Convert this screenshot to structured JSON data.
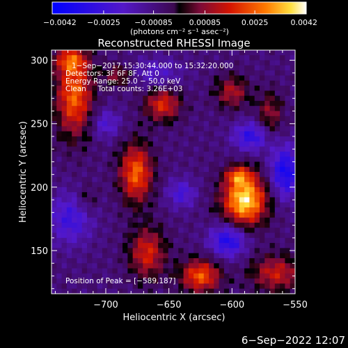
{
  "chart_data": {
    "type": "heatmap",
    "title": "Reconstructed RHESSI Image",
    "xlabel": "Heliocentric X (arcsec)",
    "ylabel": "Heliocentric Y (arcsec)",
    "xlim": [
      -743,
      -550
    ],
    "ylim": [
      116,
      308
    ],
    "xticks": [
      -700,
      -650,
      -600,
      -550
    ],
    "xtick_labels": [
      "−700",
      "−650",
      "−600",
      "−550"
    ],
    "yticks": [
      150,
      200,
      250,
      300
    ],
    "ytick_labels": [
      "150",
      "200",
      "250",
      "300"
    ],
    "colorbar": {
      "min": -0.0042,
      "max": 0.0042,
      "ticks": [
        -0.0042,
        -0.0025,
        -0.00085,
        0.00085,
        0.0025,
        0.0042
      ],
      "tick_labels": [
        "−0.0042",
        "−0.0025",
        "−0.00085",
        "0.00085",
        "0.0025",
        "0.0042"
      ],
      "unit_label": "(photons cm⁻² s⁻¹ asec⁻²)"
    },
    "annotations": [
      "1−Sep−2017 15:30:44.000 to 15:32:20.000",
      "Detectors: 3F 6F 8F, Att 0",
      "Energy Range: 25.0 − 50.0 keV",
      "Clean     Total counts: 3.26E+03"
    ],
    "peak_label": "Position of Peak = [−589,187]",
    "sources": [
      {
        "x": -590,
        "y": 190,
        "sx": 12,
        "sy": 14,
        "amp": 0.0046
      },
      {
        "x": -595,
        "y": 209,
        "sx": 7,
        "sy": 5,
        "amp": 0.0022
      },
      {
        "x": -676,
        "y": 211,
        "sx": 9,
        "sy": 16,
        "amp": 0.0032
      },
      {
        "x": -655,
        "y": 265,
        "sx": 10,
        "sy": 9,
        "amp": 0.0025
      },
      {
        "x": -725,
        "y": 272,
        "sx": 10,
        "sy": 22,
        "amp": 0.0032
      },
      {
        "x": -728,
        "y": 300,
        "sx": 9,
        "sy": 7,
        "amp": 0.0022
      },
      {
        "x": -690,
        "y": 288,
        "sx": 8,
        "sy": 6,
        "amp": 0.0016
      },
      {
        "x": -600,
        "y": 275,
        "sx": 9,
        "sy": 9,
        "amp": 0.0019
      },
      {
        "x": -570,
        "y": 258,
        "sx": 7,
        "sy": 12,
        "amp": 0.0016
      },
      {
        "x": -667,
        "y": 148,
        "sx": 10,
        "sy": 14,
        "amp": 0.0024
      },
      {
        "x": -625,
        "y": 130,
        "sx": 11,
        "sy": 9,
        "amp": 0.0031
      },
      {
        "x": -565,
        "y": 132,
        "sx": 14,
        "sy": 10,
        "amp": 0.0022
      },
      {
        "x": -715,
        "y": 190,
        "sx": 6,
        "sy": 8,
        "amp": 0.0009
      },
      {
        "x": -640,
        "y": 195,
        "sx": 8,
        "sy": 8,
        "amp": -0.0016
      },
      {
        "x": -585,
        "y": 240,
        "sx": 10,
        "sy": 8,
        "amp": -0.0022
      },
      {
        "x": -558,
        "y": 212,
        "sx": 8,
        "sy": 14,
        "amp": -0.0028
      },
      {
        "x": -603,
        "y": 158,
        "sx": 10,
        "sy": 9,
        "amp": -0.0026
      },
      {
        "x": -728,
        "y": 175,
        "sx": 12,
        "sy": 14,
        "amp": -0.0018
      },
      {
        "x": -660,
        "y": 290,
        "sx": 14,
        "sy": 8,
        "amp": -0.0012
      },
      {
        "x": -700,
        "y": 250,
        "sx": 8,
        "sy": 8,
        "amp": -0.0014
      }
    ]
  },
  "timestamp": "6−Sep−2022 12:07"
}
